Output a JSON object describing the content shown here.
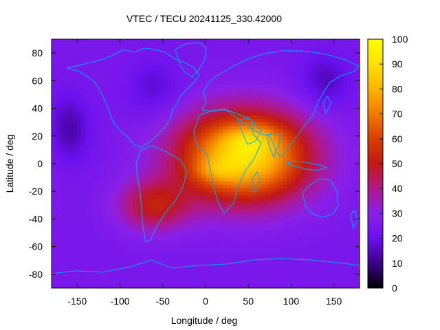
{
  "chart_data": {
    "type": "heatmap",
    "title": "VTEC / TECU 20241125_330.42000",
    "xlabel": "Longitude / deg",
    "ylabel": "Latitude / deg",
    "xlim": [
      -180,
      180
    ],
    "ylim": [
      -90,
      90
    ],
    "x_ticks": [
      -150,
      -100,
      -50,
      0,
      50,
      100,
      150
    ],
    "x_tick_labels": [
      "-150",
      "-100",
      "-50",
      "0",
      "50",
      "100",
      "150"
    ],
    "y_ticks": [
      -80,
      -60,
      -40,
      -20,
      0,
      20,
      40,
      60,
      80
    ],
    "y_tick_labels": [
      "-80",
      "-60",
      "-40",
      "-20",
      "0",
      "20",
      "40",
      "60",
      "80"
    ],
    "colorbar": {
      "range": [
        0,
        100
      ],
      "ticks": [
        0,
        10,
        20,
        30,
        40,
        50,
        60,
        70,
        80,
        90,
        100
      ],
      "tick_labels": [
        "0",
        "10",
        "20",
        "30",
        "40",
        "50",
        "60",
        "70",
        "80",
        "90",
        "100"
      ],
      "colormap": "black-purple-red-orange-yellow",
      "colors": [
        "#000000",
        "#3a0088",
        "#6a10ee",
        "#8a20e8",
        "#b01888",
        "#c01818",
        "#d84000",
        "#f07a00",
        "#ffb400",
        "#ffe000",
        "#ffff00"
      ]
    },
    "field": {
      "description_values": {
        "background_vtec": 25,
        "peak_vtec": 95,
        "peak_lon": 45,
        "peak_lat": 12
      }
    },
    "coastline_color": "#00aaff"
  }
}
